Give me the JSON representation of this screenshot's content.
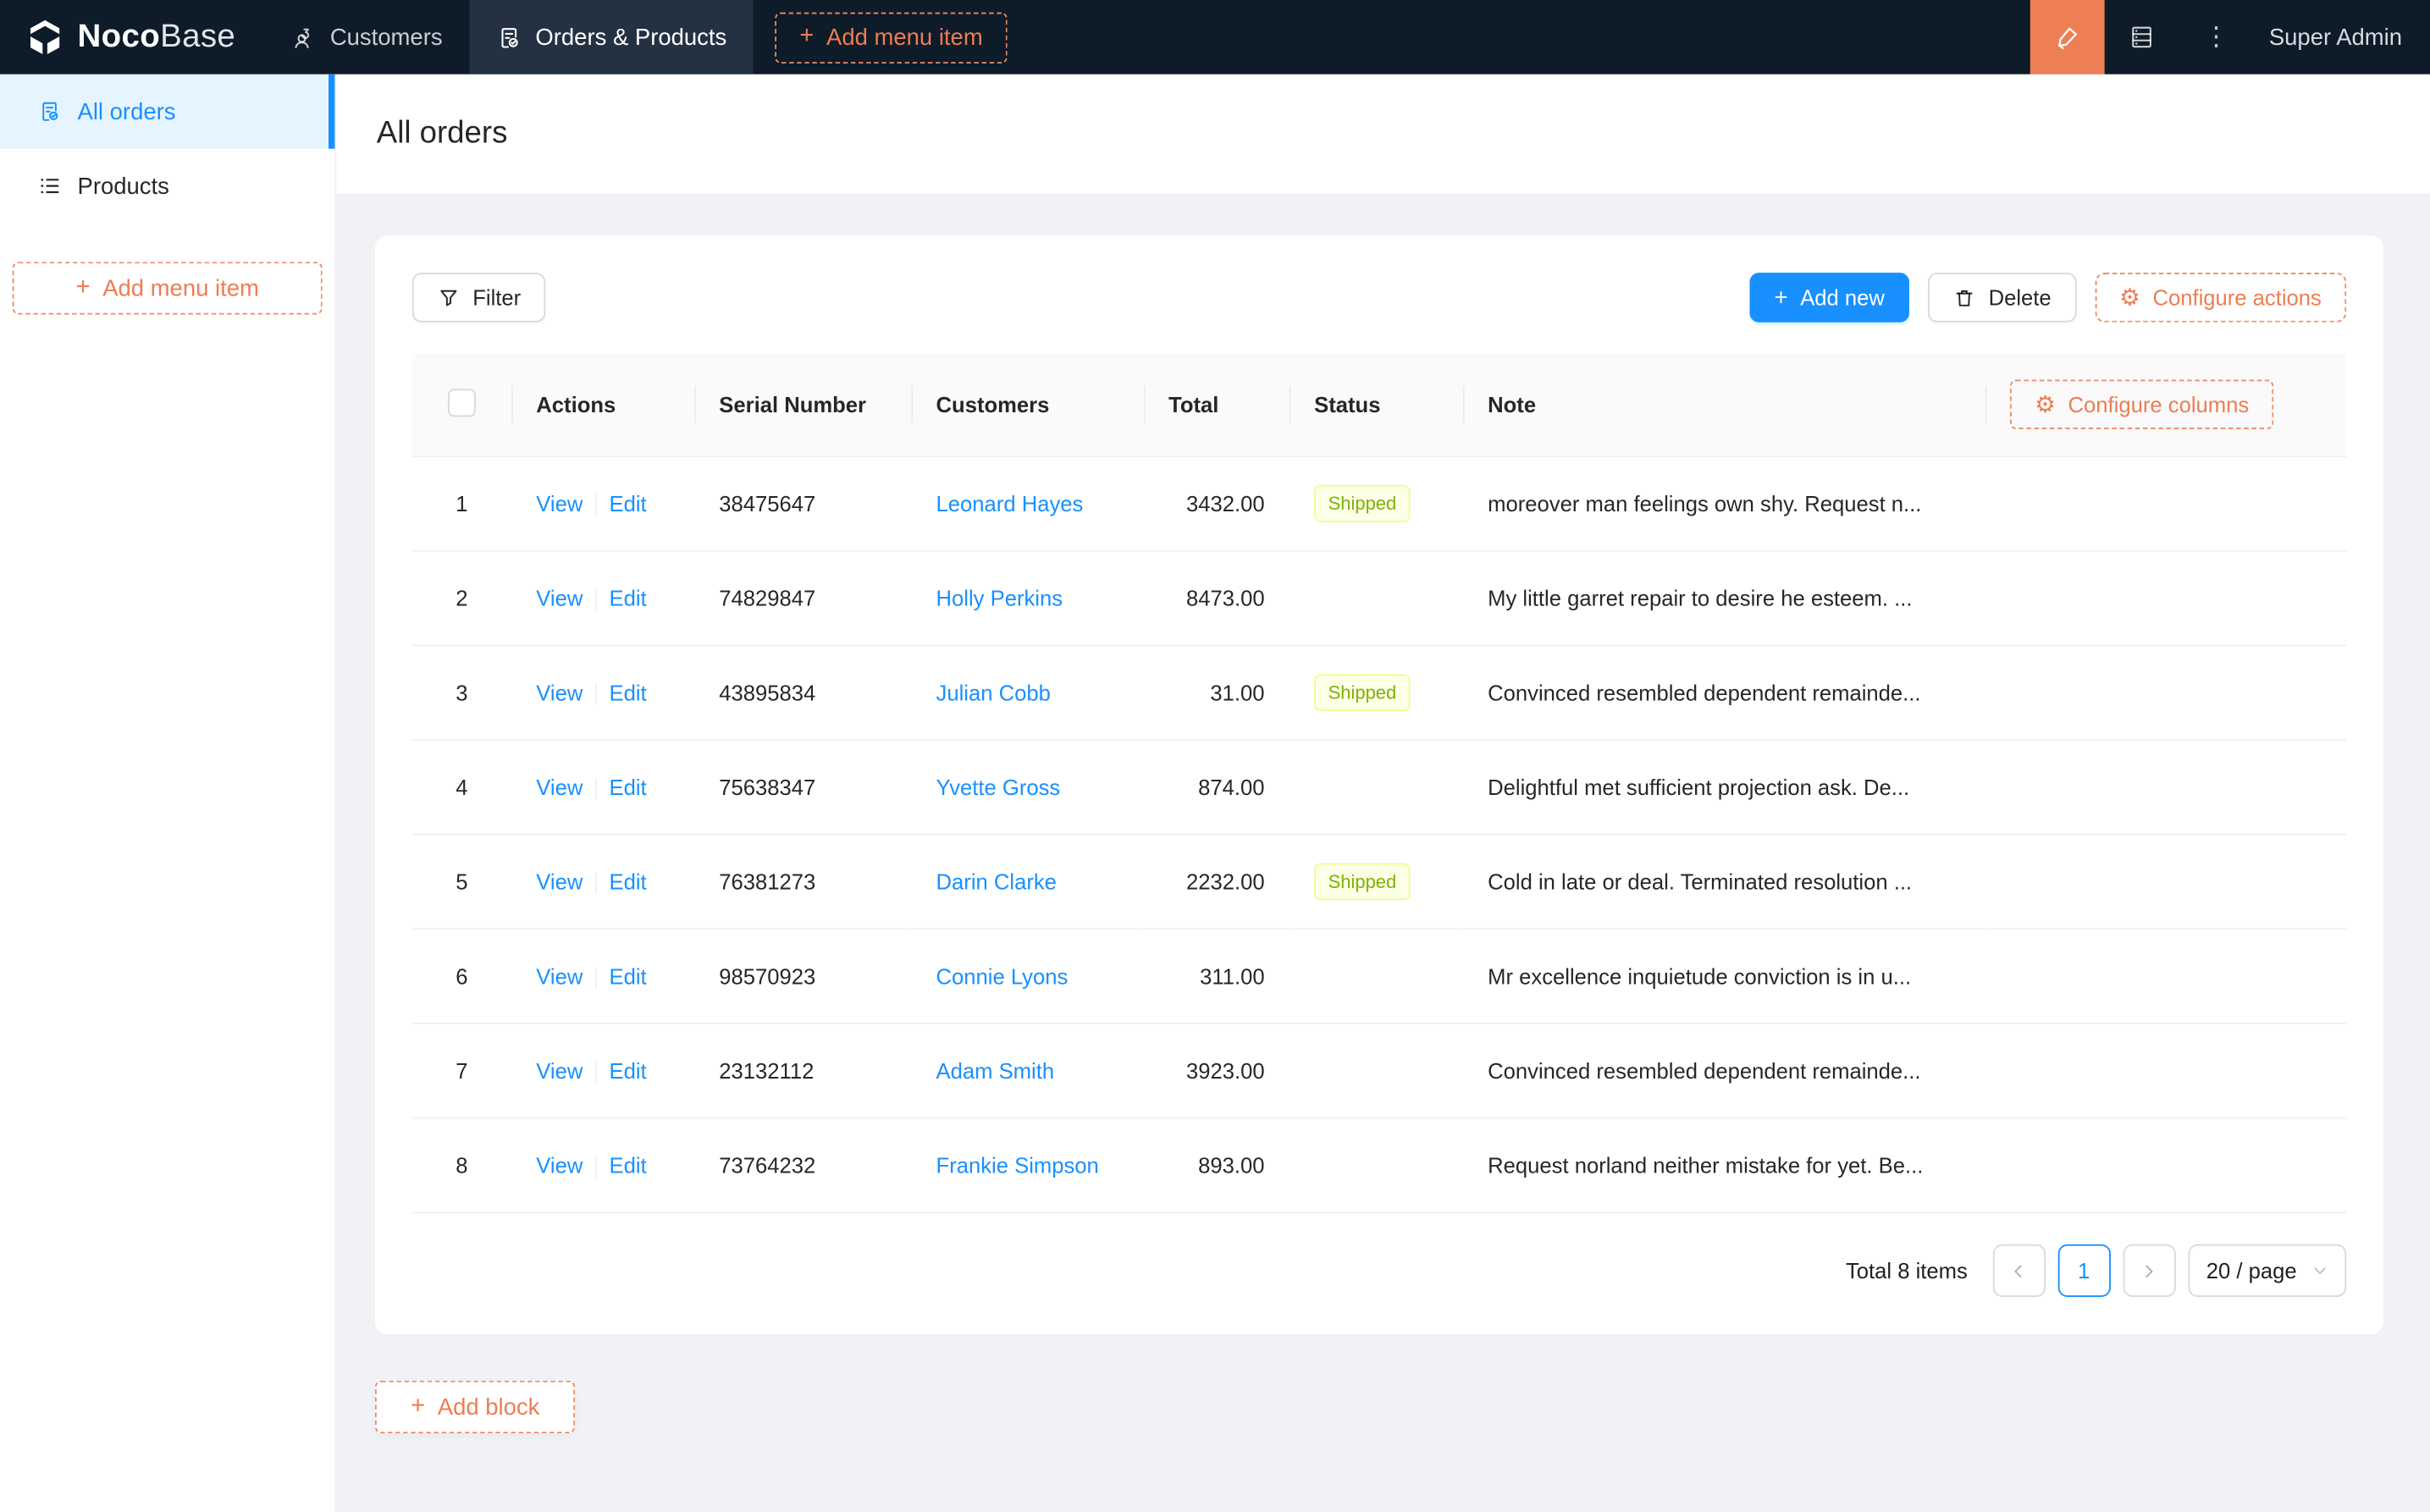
{
  "colors": {
    "topbar_bg": "#0e1b29",
    "accent_orange": "#ed7d53",
    "primary_blue": "#1890ff",
    "sidebar_active_bg": "#e6f4ff",
    "tag_shipped_bg": "#fcffe6",
    "tag_shipped_border": "#eaff8f",
    "tag_shipped_text": "#7cb305",
    "page_bg": "#f0f2f5",
    "table_header_bg": "#fafafa"
  },
  "topbar": {
    "brand": {
      "bold": "Noco",
      "light": "Base"
    },
    "items": [
      {
        "label": "Customers"
      },
      {
        "label": "Orders & Products"
      }
    ],
    "plus": "+",
    "add_menu_item": "Add menu item",
    "ellipsis": "⋮",
    "user": "Super Admin"
  },
  "sidebar": {
    "items": [
      {
        "label": "All orders"
      },
      {
        "label": "Products"
      }
    ],
    "plus": "+",
    "add_menu_item": "Add menu item"
  },
  "page": {
    "title": "All orders"
  },
  "toolbar": {
    "filter": "Filter",
    "add_new": "Add new",
    "delete": "Delete",
    "configure_actions": "Configure actions",
    "gear": "⚙",
    "plus": "+"
  },
  "table": {
    "columns": [
      "Actions",
      "Serial Number",
      "Customers",
      "Total",
      "Status",
      "Note"
    ],
    "configure_columns": "Configure columns",
    "link_view": "View",
    "link_edit": "Edit",
    "rows": [
      {
        "index": "1",
        "serial": "38475647",
        "customer": "Leonard Hayes",
        "total": "3432.00",
        "status": "Shipped",
        "note": "moreover man feelings own shy. Request n..."
      },
      {
        "index": "2",
        "serial": "74829847",
        "customer": "Holly Perkins",
        "total": "8473.00",
        "status": "",
        "note": "My little garret repair to desire he esteem. ..."
      },
      {
        "index": "3",
        "serial": "43895834",
        "customer": "Julian Cobb",
        "total": "31.00",
        "status": "Shipped",
        "note": "Convinced resembled dependent remainde..."
      },
      {
        "index": "4",
        "serial": "75638347",
        "customer": "Yvette Gross",
        "total": "874.00",
        "status": "",
        "note": "Delightful met sufficient projection ask. De..."
      },
      {
        "index": "5",
        "serial": "76381273",
        "customer": "Darin Clarke",
        "total": "2232.00",
        "status": "Shipped",
        "note": "Cold in late or deal. Terminated resolution ..."
      },
      {
        "index": "6",
        "serial": "98570923",
        "customer": "Connie Lyons",
        "total": "311.00",
        "status": "",
        "note": "Mr excellence inquietude conviction is in u..."
      },
      {
        "index": "7",
        "serial": "23132112",
        "customer": "Adam Smith",
        "total": "3923.00",
        "status": "",
        "note": "Convinced resembled dependent remainde..."
      },
      {
        "index": "8",
        "serial": "73764232",
        "customer": "Frankie Simpson",
        "total": "893.00",
        "status": "",
        "note": "Request norland neither mistake for yet. Be..."
      }
    ]
  },
  "pagination": {
    "total": "Total 8 items",
    "page": "1",
    "page_size": "20 / page"
  },
  "footer": {
    "add_block": "Add block"
  }
}
